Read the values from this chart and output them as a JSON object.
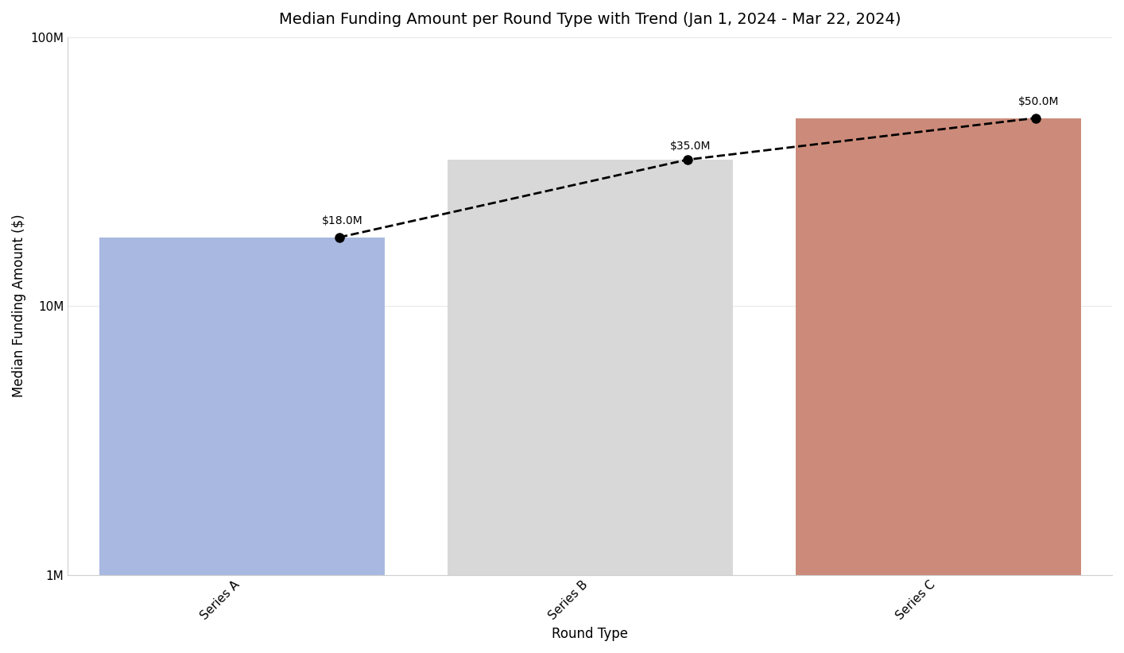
{
  "title": "Median Funding Amount per Round Type with Trend (Jan 1, 2024 - Mar 22, 2024)",
  "categories": [
    "Series A",
    "Series B",
    "Series C"
  ],
  "values": [
    18000000,
    35000000,
    50000000
  ],
  "bar_colors": [
    "#a8b8e0",
    "#d8d8d8",
    "#cc8b7a"
  ],
  "xlabel": "Round Type",
  "ylabel": "Median Funding Amount ($)",
  "ylim_min": 1000000,
  "ylim_max": 100000000,
  "annotations": [
    "$18.0M",
    "$35.0M",
    "$50.0M"
  ],
  "background_color": "#ffffff",
  "title_fontsize": 14,
  "label_fontsize": 12,
  "tick_fontsize": 11,
  "bar_width": 0.82,
  "grid_color": "#e8e8e8"
}
